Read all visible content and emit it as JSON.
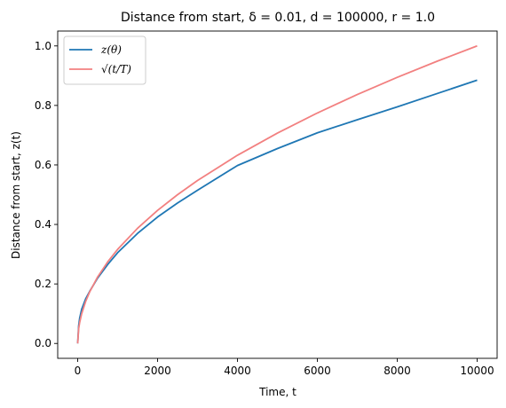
{
  "chart_data": {
    "type": "line",
    "title": "Distance from start, δ = 0.01, d = 100000, r = 1.0",
    "xlabel": "Time, t",
    "ylabel": "Distance from start, z(t)",
    "xlim": [
      -500,
      10500
    ],
    "ylim": [
      -0.05,
      1.05
    ],
    "xticks": [
      0,
      2000,
      4000,
      6000,
      8000,
      10000
    ],
    "xtick_labels": [
      "0",
      "2000",
      "4000",
      "6000",
      "8000",
      "10000"
    ],
    "yticks": [
      0.0,
      0.2,
      0.4,
      0.6,
      0.8,
      1.0
    ],
    "ytick_labels": [
      "0.0",
      "0.2",
      "0.4",
      "0.6",
      "0.8",
      "1.0"
    ],
    "grid": false,
    "legend": "top-left",
    "series": [
      {
        "name": "z(θ)",
        "color": "#1f77b4",
        "x": [
          0,
          25,
          50,
          100,
          200,
          300,
          500,
          750,
          1000,
          1500,
          2000,
          2500,
          3000,
          4000,
          5000,
          6000,
          7000,
          8000,
          9000,
          10000
        ],
        "y": [
          0.0,
          0.06,
          0.085,
          0.115,
          0.15,
          0.175,
          0.22,
          0.265,
          0.305,
          0.37,
          0.425,
          0.472,
          0.515,
          0.598,
          0.655,
          0.708,
          0.752,
          0.795,
          0.84,
          0.885
        ]
      },
      {
        "name": "√(t/T)",
        "color": "#f28080",
        "x": [
          0,
          25,
          50,
          100,
          200,
          300,
          500,
          750,
          1000,
          1500,
          2000,
          2500,
          3000,
          4000,
          5000,
          6000,
          7000,
          8000,
          9000,
          10000
        ],
        "y": [
          0.0,
          0.05,
          0.0707,
          0.1,
          0.1414,
          0.1732,
          0.2236,
          0.2739,
          0.3162,
          0.3873,
          0.4472,
          0.5,
          0.5477,
          0.6325,
          0.7071,
          0.7746,
          0.8367,
          0.8944,
          0.9487,
          1.0
        ]
      }
    ]
  }
}
